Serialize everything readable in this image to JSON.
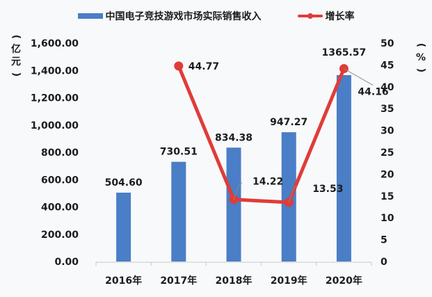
{
  "chart_data": {
    "type": "bar+line",
    "title": "",
    "categories": [
      "2016年",
      "2017年",
      "2018年",
      "2019年",
      "2020年"
    ],
    "series": [
      {
        "name": "中国电子竞技游戏市场实际销售收入",
        "type": "bar",
        "axis": "left",
        "color": "#4a7ec6",
        "values": [
          504.6,
          730.51,
          834.38,
          947.27,
          1365.57
        ],
        "labels": [
          "504.60",
          "730.51",
          "834.38",
          "947.27",
          "1365.57"
        ]
      },
      {
        "name": "增长率",
        "type": "line",
        "axis": "right",
        "color": "#e03c38",
        "values": [
          null,
          44.77,
          14.22,
          13.53,
          44.16
        ],
        "labels": [
          "",
          "44.77",
          "14.22",
          "13.53",
          "44.16"
        ]
      }
    ],
    "left_axis": {
      "label": "（亿元）",
      "ylim": [
        0,
        1600
      ],
      "ticks": [
        "0.00",
        "200.00",
        "400.00",
        "600.00",
        "800.00",
        "1,000.00",
        "1,200.00",
        "1,400.00",
        "1,600.00"
      ]
    },
    "right_axis": {
      "label": "（%）",
      "ylim": [
        0,
        50
      ],
      "ticks": [
        "0",
        "5",
        "10",
        "15",
        "20",
        "25",
        "30",
        "35",
        "40",
        "45",
        "50"
      ]
    },
    "xlabel": "",
    "grid": false,
    "legend_position": "top"
  },
  "legend": {
    "bar_label": "中国电子竞技游戏市场实际销售收入",
    "line_label": "增长率"
  },
  "axes": {
    "left_unit": "（亿元）",
    "right_unit": "（%）"
  }
}
